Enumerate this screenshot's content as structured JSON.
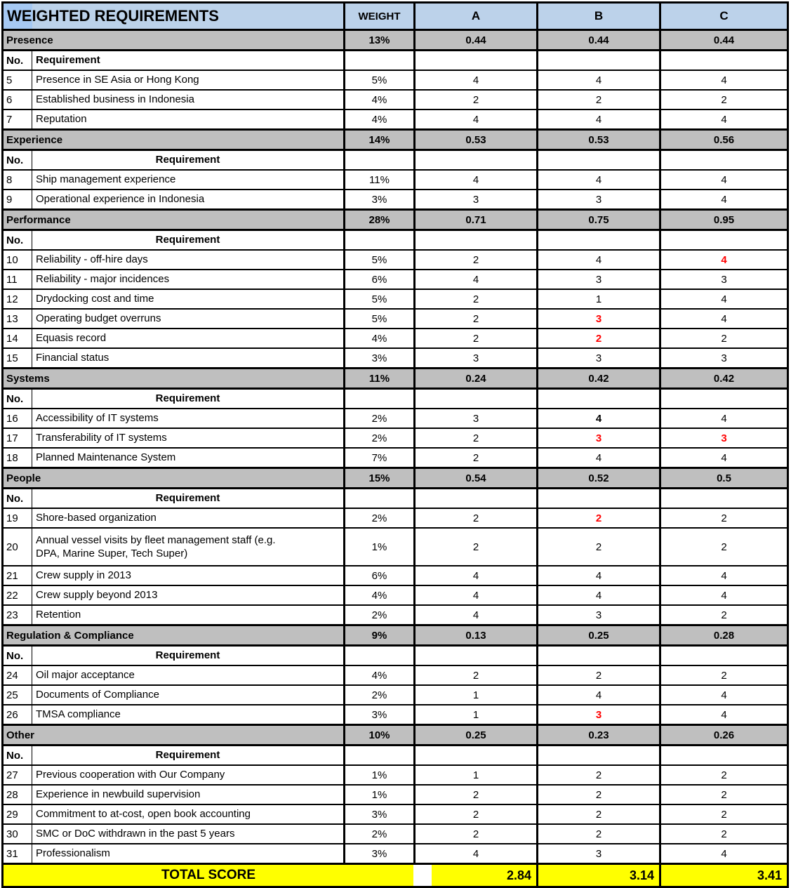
{
  "title": "WEIGHTED REQUIREMENTS",
  "columns": {
    "weight": "WEIGHT",
    "vendors": [
      "A",
      "B",
      "C"
    ]
  },
  "req_header": {
    "no": "No.",
    "requirement": "Requirement"
  },
  "sections": [
    {
      "name": "Presence",
      "weight": "13%",
      "scores": [
        "0.44",
        "0.44",
        "0.44"
      ],
      "req_header_align": "left",
      "rows": [
        {
          "no": "5",
          "text": "Presence in SE Asia or Hong Kong",
          "weight": "5%",
          "values": [
            "4",
            "4",
            "4"
          ]
        },
        {
          "no": "6",
          "text": "Established business in Indonesia",
          "weight": "4%",
          "values": [
            "2",
            "2",
            "2"
          ]
        },
        {
          "no": "7",
          "text": "Reputation",
          "weight": "4%",
          "values": [
            "4",
            "4",
            "4"
          ]
        }
      ]
    },
    {
      "name": "Experience",
      "weight": "14%",
      "scores": [
        "0.53",
        "0.53",
        "0.56"
      ],
      "req_header_align": "center",
      "rows": [
        {
          "no": "8",
          "text": "Ship management experience",
          "weight": "11%",
          "values": [
            "4",
            "4",
            "4"
          ]
        },
        {
          "no": "9",
          "text": "Operational experience in Indonesia",
          "weight": "3%",
          "values": [
            "3",
            "3",
            "4"
          ]
        }
      ]
    },
    {
      "name": "Performance",
      "weight": "28%",
      "scores": [
        "0.71",
        "0.75",
        "0.95"
      ],
      "req_header_align": "center",
      "rows": [
        {
          "no": "10",
          "text": "Reliability - off-hire days",
          "weight": "5%",
          "values": [
            "2",
            "4",
            {
              "v": "4",
              "red": true
            }
          ]
        },
        {
          "no": "11",
          "text": "Reliability - major incidences",
          "weight": "6%",
          "values": [
            "4",
            "3",
            "3"
          ]
        },
        {
          "no": "12",
          "text": "Drydocking cost and time",
          "weight": "5%",
          "values": [
            "2",
            "1",
            "4"
          ]
        },
        {
          "no": "13",
          "text": "Operating budget overruns",
          "weight": "5%",
          "values": [
            "2",
            {
              "v": "3",
              "red": true
            },
            "4"
          ]
        },
        {
          "no": "14",
          "text": "Equasis record",
          "weight": "4%",
          "values": [
            "2",
            {
              "v": "2",
              "red": true
            },
            "2"
          ]
        },
        {
          "no": "15",
          "text": "Financial status",
          "weight": "3%",
          "values": [
            "3",
            "3",
            "3"
          ]
        }
      ]
    },
    {
      "name": "Systems",
      "weight": "11%",
      "scores": [
        "0.24",
        "0.42",
        "0.42"
      ],
      "req_header_align": "center",
      "rows": [
        {
          "no": "16",
          "text": "Accessibility of IT systems",
          "weight": "2%",
          "values": [
            "3",
            {
              "v": "4",
              "bold": true
            },
            "4"
          ]
        },
        {
          "no": "17",
          "text": "Transferability of IT systems",
          "weight": "2%",
          "values": [
            "2",
            {
              "v": "3",
              "red": true
            },
            {
              "v": "3",
              "red": true
            }
          ]
        },
        {
          "no": "18",
          "text": "Planned Maintenance System",
          "weight": "7%",
          "values": [
            "2",
            "4",
            "4"
          ]
        }
      ]
    },
    {
      "name": "People",
      "weight": "15%",
      "scores": [
        "0.54",
        "0.52",
        "0.5"
      ],
      "req_header_align": "center",
      "rows": [
        {
          "no": "19",
          "text": "Shore-based organization",
          "weight": "2%",
          "values": [
            "2",
            {
              "v": "2",
              "red": true
            },
            "2"
          ]
        },
        {
          "no": "20",
          "text": "Annual vessel visits by fleet management staff (e.g. DPA, Marine Super, Tech Super)",
          "weight": "1%",
          "values": [
            "2",
            "2",
            "2"
          ],
          "tall": true
        },
        {
          "no": "21",
          "text": "Crew supply in 2013",
          "weight": "6%",
          "values": [
            "4",
            "4",
            "4"
          ]
        },
        {
          "no": "22",
          "text": "Crew supply beyond 2013",
          "weight": "4%",
          "values": [
            "4",
            "4",
            "4"
          ]
        },
        {
          "no": "23",
          "text": "Retention",
          "weight": "2%",
          "values": [
            "4",
            "3",
            "2"
          ]
        }
      ]
    },
    {
      "name": "Regulation & Compliance",
      "weight": "9%",
      "scores": [
        "0.13",
        "0.25",
        "0.28"
      ],
      "req_header_align": "center",
      "rows": [
        {
          "no": "24",
          "text": "Oil major acceptance",
          "weight": "4%",
          "values": [
            "2",
            "2",
            "2"
          ]
        },
        {
          "no": "25",
          "text": "Documents of Compliance",
          "weight": "2%",
          "values": [
            "1",
            "4",
            "4"
          ]
        },
        {
          "no": "26",
          "text": "TMSA compliance",
          "weight": "3%",
          "values": [
            "1",
            {
              "v": "3",
              "red": true
            },
            "4"
          ]
        }
      ]
    },
    {
      "name": "Other",
      "weight": "10%",
      "scores": [
        "0.25",
        "0.23",
        "0.26"
      ],
      "req_header_align": "center",
      "rows": [
        {
          "no": "27",
          "text": "Previous cooperation with Our Company",
          "weight": "1%",
          "values": [
            "1",
            "2",
            "2"
          ]
        },
        {
          "no": "28",
          "text": "Experience in newbuild supervision",
          "weight": "1%",
          "values": [
            "2",
            "2",
            "2"
          ]
        },
        {
          "no": "29",
          "text": "Commitment to at-cost, open book accounting",
          "weight": "3%",
          "values": [
            "2",
            "2",
            "2"
          ]
        },
        {
          "no": "30",
          "text": "SMC or DoC withdrawn in the past 5 years",
          "weight": "2%",
          "values": [
            "2",
            "2",
            "2"
          ]
        },
        {
          "no": "31",
          "text": "Professionalism",
          "weight": "3%",
          "values": [
            "4",
            "3",
            "4"
          ]
        }
      ]
    }
  ],
  "total": {
    "label": "TOTAL SCORE",
    "values": [
      "2.84",
      "3.14",
      "3.41"
    ]
  },
  "colors": {
    "header_blue": "#BCD2EA",
    "header_blue_bright": "#A6C9F3",
    "category_gray": "#BFBFBF",
    "total_yellow": "#FFFF00",
    "alert_red": "#FF0000",
    "border_black": "#000000"
  }
}
